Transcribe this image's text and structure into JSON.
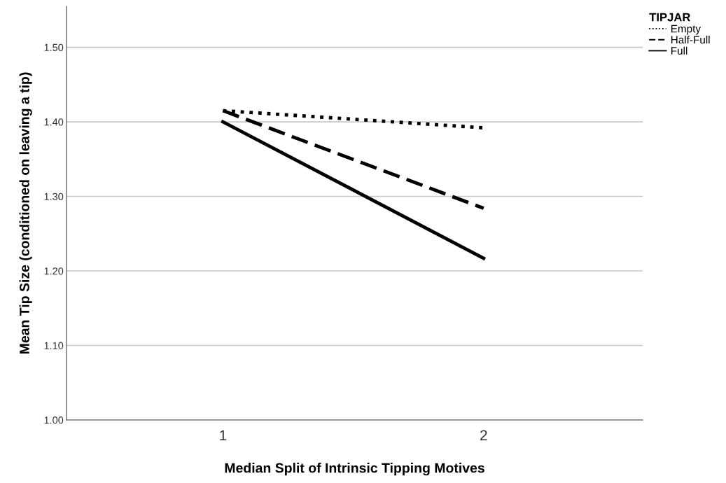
{
  "chart_data": {
    "type": "line",
    "xlabel": "Median Split of Intrinsic Tipping Motives",
    "ylabel": "Mean Tip Size (conditioned on leaving a tip)",
    "legend_title": "TIPJAR",
    "categories": [
      "1",
      "2"
    ],
    "series": [
      {
        "name": "Empty",
        "color": "#000000",
        "line_style": "dotted",
        "values": [
          1.415,
          1.392
        ]
      },
      {
        "name": "Half-Full",
        "color": "#000000",
        "line_style": "dashed",
        "values": [
          1.415,
          1.284
        ]
      },
      {
        "name": "Full",
        "color": "#000000",
        "line_style": "solid",
        "values": [
          1.4,
          1.217
        ]
      }
    ],
    "ylim": [
      1.0,
      1.555
    ],
    "yticks": [
      {
        "value": 1.0,
        "label": "1.00"
      },
      {
        "value": 1.1,
        "label": "1.10"
      },
      {
        "value": 1.2,
        "label": "1.20"
      },
      {
        "value": 1.3,
        "label": "1.30"
      },
      {
        "value": 1.4,
        "label": "1.40"
      },
      {
        "value": 1.5,
        "label": "1.50"
      }
    ],
    "grid": "y",
    "legend": "top right",
    "marker": "none"
  }
}
